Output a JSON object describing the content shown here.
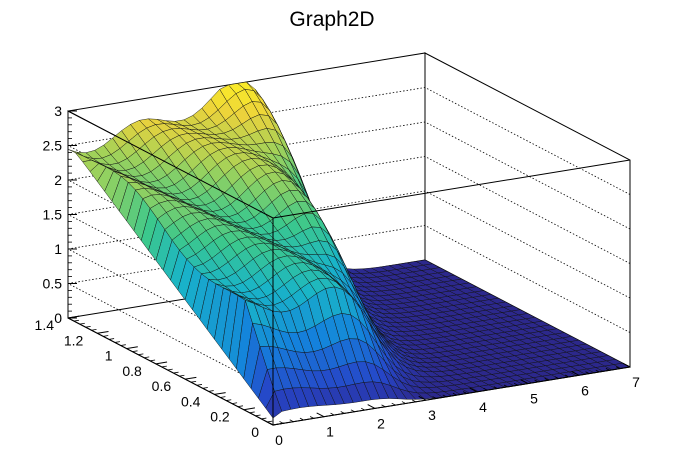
{
  "chart_data": {
    "type": "surface3d",
    "title": "Graph2D",
    "xlabel": "",
    "ylabel": "",
    "zlabel": "",
    "xlim": [
      0,
      7
    ],
    "ylim": [
      0,
      1.4
    ],
    "zlim": [
      0,
      3
    ],
    "x_ticks": [
      "0",
      "1",
      "2",
      "3",
      "4",
      "5",
      "6",
      "7"
    ],
    "y_ticks": [
      "0",
      "0.2",
      "0.4",
      "0.6",
      "0.8",
      "1",
      "1.2",
      "1.4"
    ],
    "z_ticks": [
      "0",
      "0.5",
      "1",
      "1.5",
      "2",
      "2.5",
      "3"
    ],
    "colormap": "viridis-like (dark blue → teal → green → yellow)",
    "grid": true,
    "surface_samples": [
      {
        "x": 0.0,
        "y": 1.4,
        "z": 2.45
      },
      {
        "x": 1.0,
        "y": 1.4,
        "z": 2.6
      },
      {
        "x": 2.0,
        "y": 1.4,
        "z": 2.75
      },
      {
        "x": 3.0,
        "y": 1.4,
        "z": 2.9
      },
      {
        "x": 3.5,
        "y": 1.4,
        "z": 3.0
      },
      {
        "x": 4.0,
        "y": 1.4,
        "z": 2.7
      },
      {
        "x": 5.0,
        "y": 1.4,
        "z": 1.5
      },
      {
        "x": 6.0,
        "y": 1.4,
        "z": 0.05
      },
      {
        "x": 7.0,
        "y": 1.4,
        "z": 0.0
      },
      {
        "x": 0.0,
        "y": 0.7,
        "z": 1.3
      },
      {
        "x": 2.0,
        "y": 0.7,
        "z": 1.4
      },
      {
        "x": 3.5,
        "y": 0.7,
        "z": 1.2
      },
      {
        "x": 4.5,
        "y": 0.7,
        "z": 0.5
      },
      {
        "x": 6.0,
        "y": 0.7,
        "z": 0.0
      },
      {
        "x": 0.0,
        "y": 0.0,
        "z": 0.05
      },
      {
        "x": 2.0,
        "y": 0.0,
        "z": 0.1
      },
      {
        "x": 4.0,
        "y": 0.0,
        "z": 0.05
      },
      {
        "x": 7.0,
        "y": 0.0,
        "z": 0.0
      }
    ]
  }
}
